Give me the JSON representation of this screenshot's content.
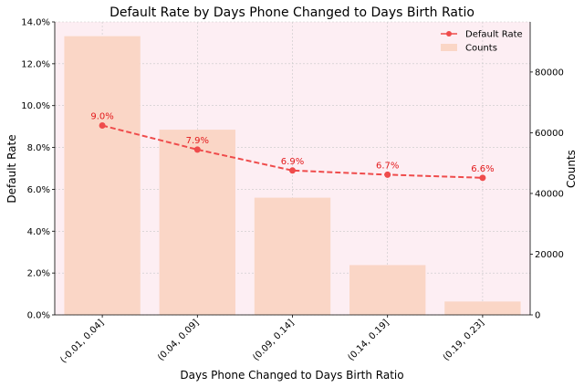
{
  "chart_data": {
    "type": "bar",
    "title": "Default Rate by Days Phone Changed to Days Birth Ratio",
    "xlabel": "Days Phone Changed to Days Birth Ratio",
    "ylabel": "Default Rate",
    "y2label": "Counts",
    "categories": [
      "(-0.01, 0.04]",
      "(0.04, 0.09]",
      "(0.09, 0.14]",
      "(0.14, 0.19]",
      "(0.19, 0.23]"
    ],
    "series": [
      {
        "name": "Default Rate",
        "type": "line",
        "axis": "left",
        "values": [
          0.0905,
          0.079,
          0.069,
          0.067,
          0.0655
        ],
        "labels": [
          "9.0%",
          "7.9%",
          "6.9%",
          "6.7%",
          "6.6%"
        ],
        "color": "#ef4b4b"
      },
      {
        "name": "Counts",
        "type": "bar",
        "axis": "right",
        "values": [
          91800,
          61000,
          38600,
          16400,
          4400
        ],
        "color": "#fad6c6"
      }
    ],
    "ylim": [
      0,
      0.14
    ],
    "y2lim": [
      0,
      96500
    ],
    "yticks": [
      0,
      0.02,
      0.04,
      0.06,
      0.08,
      0.1,
      0.12,
      0.14
    ],
    "yticklabels": [
      "0.0%",
      "2.0%",
      "4.0%",
      "6.0%",
      "8.0%",
      "10.0%",
      "12.0%",
      "14.0%"
    ],
    "y2ticks": [
      0,
      20000,
      40000,
      60000,
      80000
    ],
    "y2ticklabels": [
      "0",
      "20000",
      "40000",
      "60000",
      "80000"
    ],
    "grid": true,
    "legend": "top-right",
    "background_color": "#fdeef3",
    "grid_color": "#c8c8c8"
  }
}
